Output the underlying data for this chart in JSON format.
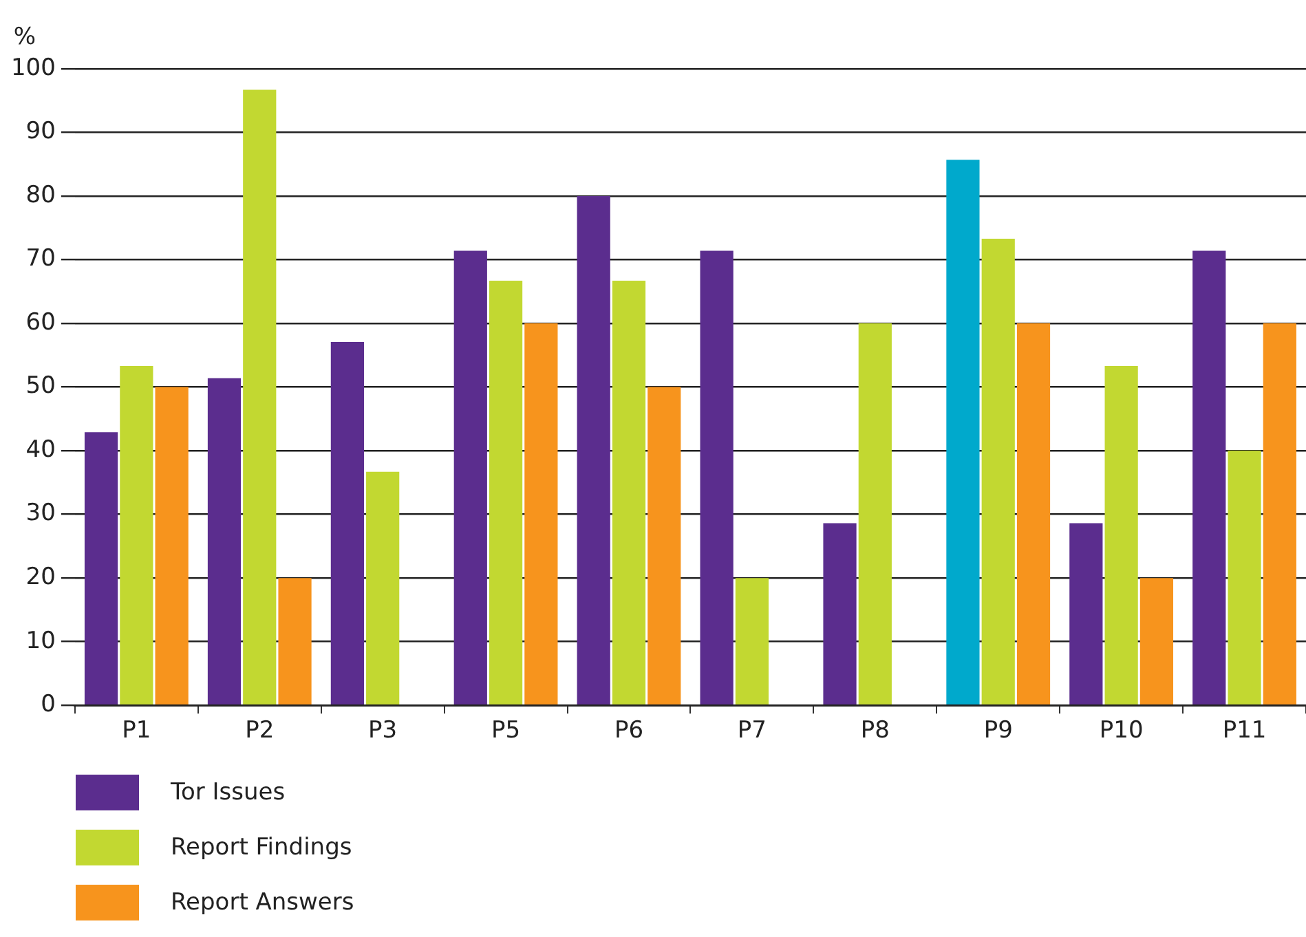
{
  "chart_data": {
    "type": "bar",
    "ylabel": "%",
    "categories": [
      "P1",
      "P2",
      "P3",
      "P5",
      "P6",
      "P7",
      "P8",
      "P9",
      "P10",
      "P11"
    ],
    "series": [
      {
        "name": "Tor Issues",
        "color": "#5b2d8e",
        "colors": [
          "#5b2d8e",
          "#5b2d8e",
          "#5b2d8e",
          "#5b2d8e",
          "#5b2d8e",
          "#5b2d8e",
          "#5b2d8e",
          "#00a9cc",
          "#5b2d8e",
          "#5b2d8e"
        ],
        "values": [
          42.9,
          51.4,
          57.1,
          71.4,
          80,
          71.4,
          28.6,
          85.7,
          28.6,
          71.4
        ]
      },
      {
        "name": "Report Findings",
        "color": "#c2d831",
        "values": [
          53.3,
          96.7,
          36.7,
          66.7,
          66.7,
          20,
          60,
          73.3,
          53.3,
          40
        ]
      },
      {
        "name": "Report Answers",
        "color": "#f7941d",
        "values": [
          50,
          20,
          0,
          60,
          50,
          0,
          0,
          60,
          20,
          60
        ]
      }
    ],
    "ylim": [
      0,
      100
    ],
    "yticks": [
      0,
      10,
      20,
      30,
      40,
      50,
      60,
      70,
      80,
      90,
      100
    ],
    "grid": "y",
    "legend": "bottom left"
  }
}
